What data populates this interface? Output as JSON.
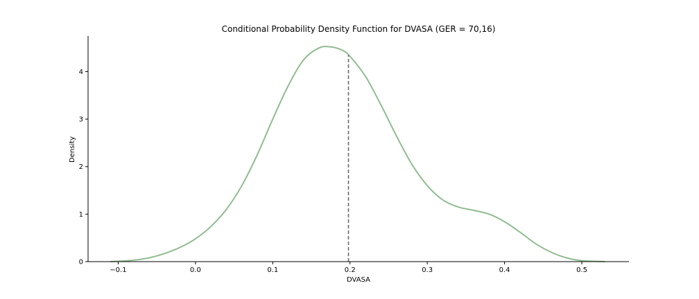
{
  "chart_data": {
    "type": "line",
    "title": "Conditional Probability Density Function for DVASA (GER = 70,16)",
    "xlabel": "DVASA",
    "ylabel": "Density",
    "xlim": [
      -0.139,
      0.561
    ],
    "ylim": [
      0,
      4.75
    ],
    "xticks": [
      -0.1,
      0.0,
      0.1,
      0.2,
      0.3,
      0.4,
      0.5
    ],
    "xtick_labels": [
      "−0.1",
      "0.0",
      "0.1",
      "0.2",
      "0.3",
      "0.4",
      "0.5"
    ],
    "yticks": [
      0,
      1,
      2,
      3,
      4
    ],
    "ytick_labels": [
      "0",
      "1",
      "2",
      "3",
      "4"
    ],
    "grid": false,
    "line_color": "#8fbc8f",
    "vline_color": "#696969",
    "series": [
      {
        "x": [
          -0.11,
          -0.08,
          -0.06,
          -0.04,
          -0.02,
          0.0,
          0.02,
          0.04,
          0.06,
          0.08,
          0.1,
          0.12,
          0.14,
          0.16,
          0.175,
          0.19,
          0.2,
          0.22,
          0.24,
          0.26,
          0.28,
          0.3,
          0.32,
          0.34,
          0.36,
          0.38,
          0.4,
          0.42,
          0.44,
          0.46,
          0.48,
          0.5,
          0.53
        ],
        "y": [
          0.0,
          0.03,
          0.08,
          0.17,
          0.3,
          0.48,
          0.74,
          1.1,
          1.6,
          2.25,
          3.0,
          3.7,
          4.25,
          4.5,
          4.52,
          4.45,
          4.32,
          3.9,
          3.3,
          2.65,
          2.05,
          1.6,
          1.3,
          1.15,
          1.08,
          1.0,
          0.84,
          0.62,
          0.38,
          0.2,
          0.08,
          0.02,
          0.0
        ]
      }
    ],
    "vline": {
      "x": 0.198,
      "y": 4.35
    }
  }
}
